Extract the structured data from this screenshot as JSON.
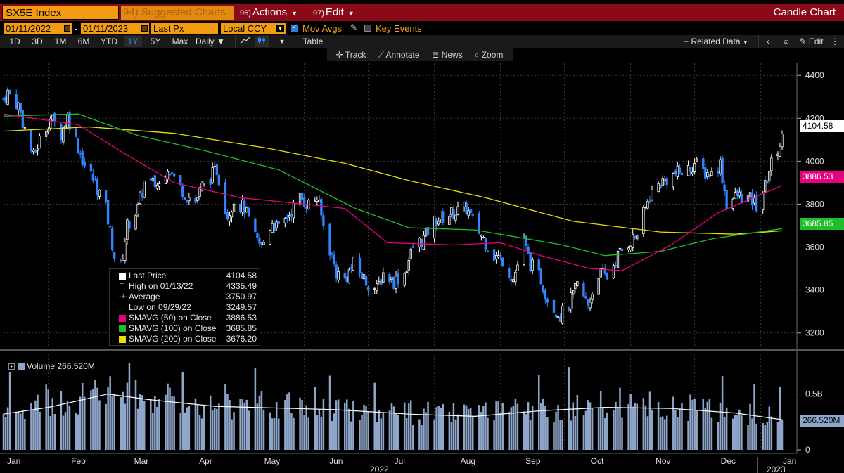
{
  "window": {
    "title": "Candle Chart"
  },
  "topbar": {
    "ticker": "SX5E Index",
    "suggested": "94) Suggested Charts",
    "actions_num": "96)",
    "actions": "Actions",
    "edit_num": "97)",
    "edit": "Edit"
  },
  "controls": {
    "start_date": "01/11/2022",
    "end_date": "01/11/2023",
    "price_field": "Last Px",
    "currency": "Local CCY",
    "mov_avgs": "Mov Avgs",
    "key_events": "Key Events"
  },
  "toolbar": {
    "ranges": [
      "1D",
      "3D",
      "1M",
      "6M",
      "YTD",
      "1Y",
      "5Y",
      "Max"
    ],
    "active_range": "1Y",
    "frequency": "Daily",
    "table": "Table",
    "related": "Related Data",
    "edit": "Edit"
  },
  "subtoolbar": {
    "track": "Track",
    "annotate": "Annotate",
    "news": "News",
    "zoom": "Zoom"
  },
  "legend": {
    "last_price_label": "Last Price",
    "last_price": "4104.58",
    "high_label": "High on 01/13/22",
    "high": "4335.49",
    "average_label": "Average",
    "average": "3750.97",
    "low_label": "Low on 09/29/22",
    "low": "3249.57",
    "sma50_label": "SMAVG (50)  on Close",
    "sma50": "3886.53",
    "sma100_label": "SMAVG (100) on Close",
    "sma100": "3685.85",
    "sma200_label": "SMAVG (200) on Close",
    "sma200": "3676.20"
  },
  "volume": {
    "label": "Volume",
    "value": "266.520M"
  },
  "colors": {
    "accent": "#f39c12",
    "header": "#8b0a1a",
    "sma50": "#e6007e",
    "sma100": "#1fbf2a",
    "sma200": "#e8e000",
    "up": "#ffffff",
    "down": "#2f86ff",
    "volume": "#8ea6c9"
  },
  "chart_data": {
    "type": "candlestick",
    "title": "SX5E Index",
    "y_ticks": [
      3200,
      3400,
      3600,
      3800,
      4000,
      4200,
      4400
    ],
    "ylim": [
      3140,
      4440
    ],
    "volume_ticks": [
      "0",
      "0.5B"
    ],
    "x_labels": [
      "Jan",
      "Feb",
      "Mar",
      "Apr",
      "May",
      "Jun",
      "Jul",
      "Aug",
      "Sep",
      "Oct",
      "Nov",
      "Dec",
      "Jan"
    ],
    "year_labels": [
      "2022",
      "2023"
    ],
    "last_price": 4104.58,
    "price_tags": {
      "last": "4104.58",
      "sma50": "3886.53",
      "sma100": "3685.85",
      "vol": "266.520M"
    },
    "close_path": [
      [
        "2022-01-11",
        4290
      ],
      [
        "2022-01-13",
        4320
      ],
      [
        "2022-01-18",
        4260
      ],
      [
        "2022-01-21",
        4150
      ],
      [
        "2022-01-25",
        4020
      ],
      [
        "2022-01-28",
        4100
      ],
      [
        "2022-02-02",
        4200
      ],
      [
        "2022-02-07",
        4130
      ],
      [
        "2022-02-10",
        4210
      ],
      [
        "2022-02-14",
        4100
      ],
      [
        "2022-02-18",
        3980
      ],
      [
        "2022-02-23",
        3900
      ],
      [
        "2022-02-28",
        3780
      ],
      [
        "2022-03-04",
        3560
      ],
      [
        "2022-03-07",
        3505
      ],
      [
        "2022-03-10",
        3700
      ],
      [
        "2022-03-15",
        3780
      ],
      [
        "2022-03-18",
        3900
      ],
      [
        "2022-03-25",
        3890
      ],
      [
        "2022-03-29",
        3980
      ],
      [
        "2022-04-01",
        3920
      ],
      [
        "2022-04-06",
        3850
      ],
      [
        "2022-04-11",
        3810
      ],
      [
        "2022-04-14",
        3880
      ],
      [
        "2022-04-21",
        3960
      ],
      [
        "2022-04-26",
        3750
      ],
      [
        "2022-04-29",
        3820
      ],
      [
        "2022-05-04",
        3780
      ],
      [
        "2022-05-09",
        3640
      ],
      [
        "2022-05-12",
        3600
      ],
      [
        "2022-05-17",
        3720
      ],
      [
        "2022-05-20",
        3680
      ],
      [
        "2022-05-24",
        3740
      ],
      [
        "2022-05-30",
        3830
      ],
      [
        "2022-06-03",
        3800
      ],
      [
        "2022-06-07",
        3830
      ],
      [
        "2022-06-10",
        3700
      ],
      [
        "2022-06-16",
        3480
      ],
      [
        "2022-06-20",
        3450
      ],
      [
        "2022-06-24",
        3520
      ],
      [
        "2022-06-30",
        3440
      ],
      [
        "2022-07-05",
        3400
      ],
      [
        "2022-07-08",
        3480
      ],
      [
        "2022-07-13",
        3440
      ],
      [
        "2022-07-18",
        3480
      ],
      [
        "2022-07-22",
        3600
      ],
      [
        "2022-07-27",
        3640
      ],
      [
        "2022-08-01",
        3720
      ],
      [
        "2022-08-05",
        3740
      ],
      [
        "2022-08-10",
        3760
      ],
      [
        "2022-08-16",
        3780
      ],
      [
        "2022-08-19",
        3720
      ],
      [
        "2022-08-24",
        3640
      ],
      [
        "2022-08-29",
        3560
      ],
      [
        "2022-09-02",
        3540
      ],
      [
        "2022-09-07",
        3450
      ],
      [
        "2022-09-12",
        3620
      ],
      [
        "2022-09-15",
        3520
      ],
      [
        "2022-09-20",
        3450
      ],
      [
        "2022-09-23",
        3360
      ],
      [
        "2022-09-29",
        3280
      ],
      [
        "2022-10-03",
        3330
      ],
      [
        "2022-10-07",
        3420
      ],
      [
        "2022-10-12",
        3330
      ],
      [
        "2022-10-17",
        3480
      ],
      [
        "2022-10-21",
        3460
      ],
      [
        "2022-10-26",
        3560
      ],
      [
        "2022-10-31",
        3620
      ],
      [
        "2022-11-04",
        3660
      ],
      [
        "2022-11-10",
        3840
      ],
      [
        "2022-11-15",
        3900
      ],
      [
        "2022-11-22",
        3940
      ],
      [
        "2022-11-28",
        3960
      ],
      [
        "2022-12-01",
        3990
      ],
      [
        "2022-12-05",
        3950
      ],
      [
        "2022-12-09",
        3940
      ],
      [
        "2022-12-13",
        3990
      ],
      [
        "2022-12-16",
        3800
      ],
      [
        "2022-12-21",
        3840
      ],
      [
        "2022-12-27",
        3820
      ],
      [
        "2022-12-30",
        3794
      ],
      [
        "2023-01-03",
        3880
      ],
      [
        "2023-01-05",
        3960
      ],
      [
        "2023-01-09",
        4060
      ],
      [
        "2023-01-11",
        4104.58
      ]
    ],
    "sma50_path": [
      [
        "2022-01-11",
        4220
      ],
      [
        "2022-02-15",
        4170
      ],
      [
        "2022-03-08",
        4040
      ],
      [
        "2022-04-01",
        3900
      ],
      [
        "2022-05-02",
        3830
      ],
      [
        "2022-06-01",
        3800
      ],
      [
        "2022-06-20",
        3780
      ],
      [
        "2022-07-10",
        3620
      ],
      [
        "2022-08-10",
        3610
      ],
      [
        "2022-09-01",
        3620
      ],
      [
        "2022-09-20",
        3560
      ],
      [
        "2022-10-13",
        3500
      ],
      [
        "2022-10-28",
        3490
      ],
      [
        "2022-11-20",
        3610
      ],
      [
        "2022-12-12",
        3760
      ],
      [
        "2023-01-11",
        3886.53
      ]
    ],
    "sma100_path": [
      [
        "2022-01-11",
        4210
      ],
      [
        "2022-02-15",
        4220
      ],
      [
        "2022-03-15",
        4120
      ],
      [
        "2022-04-15",
        4050
      ],
      [
        "2022-05-20",
        3960
      ],
      [
        "2022-06-25",
        3780
      ],
      [
        "2022-07-20",
        3690
      ],
      [
        "2022-08-20",
        3680
      ],
      [
        "2022-09-30",
        3610
      ],
      [
        "2022-10-20",
        3560
      ],
      [
        "2022-11-15",
        3580
      ],
      [
        "2022-12-10",
        3640
      ],
      [
        "2023-01-11",
        3685.85
      ]
    ],
    "sma200_path": [
      [
        "2022-01-11",
        4140
      ],
      [
        "2022-02-20",
        4160
      ],
      [
        "2022-04-01",
        4130
      ],
      [
        "2022-05-15",
        4060
      ],
      [
        "2022-06-20",
        3990
      ],
      [
        "2022-07-20",
        3910
      ],
      [
        "2022-08-25",
        3830
      ],
      [
        "2022-10-05",
        3720
      ],
      [
        "2022-11-15",
        3670
      ],
      [
        "2022-12-20",
        3660
      ],
      [
        "2023-01-11",
        3676.2
      ]
    ],
    "volume_avg_path": [
      [
        "2022-01-11",
        0.32
      ],
      [
        "2022-02-01",
        0.38
      ],
      [
        "2022-03-01",
        0.5
      ],
      [
        "2022-03-20",
        0.45
      ],
      [
        "2022-04-20",
        0.39
      ],
      [
        "2022-06-15",
        0.36
      ],
      [
        "2022-07-20",
        0.32
      ],
      [
        "2022-08-20",
        0.3
      ],
      [
        "2022-09-20",
        0.35
      ],
      [
        "2022-10-20",
        0.38
      ],
      [
        "2022-11-20",
        0.37
      ],
      [
        "2022-12-20",
        0.33
      ],
      [
        "2023-01-11",
        0.27
      ]
    ],
    "volume_ylim": [
      0,
      0.85
    ],
    "volume_last": 0.2665
  }
}
